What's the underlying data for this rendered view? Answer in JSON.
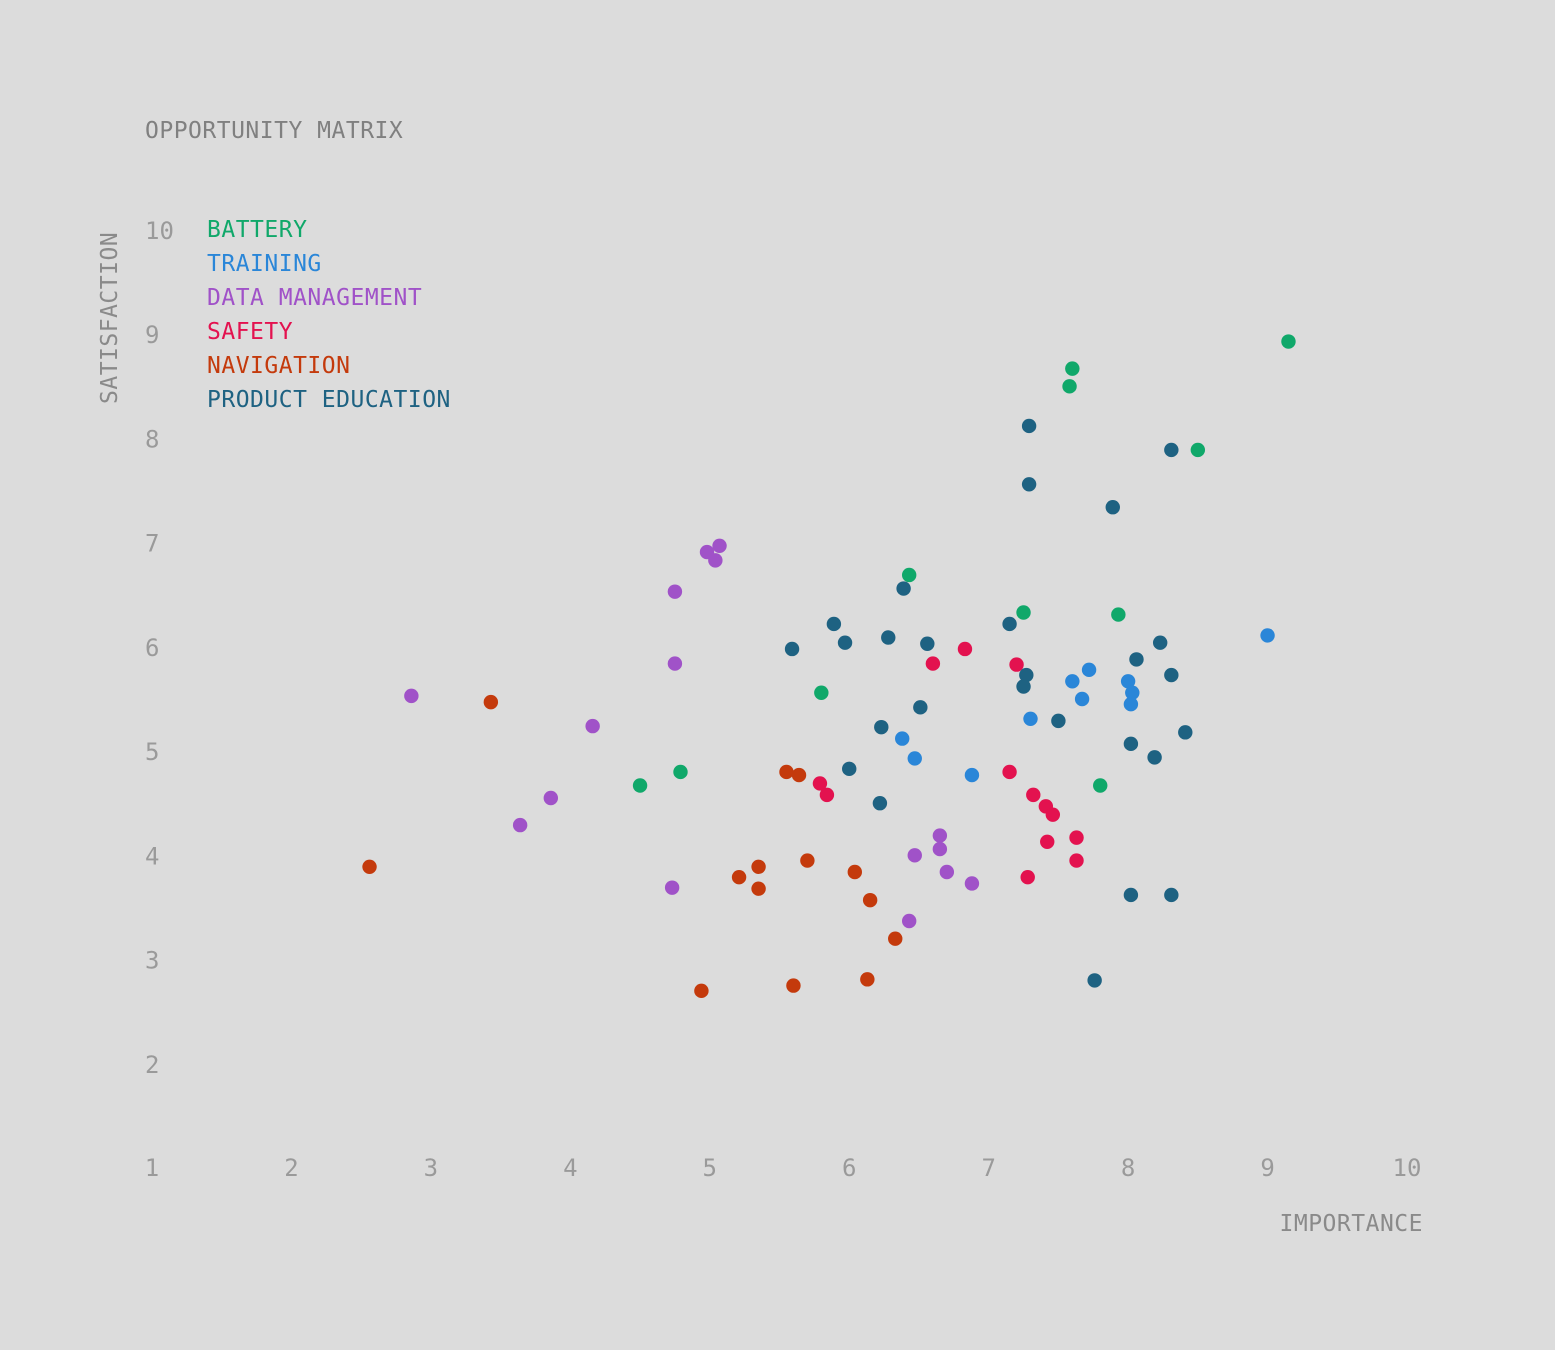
{
  "chart_data": {
    "type": "scatter",
    "title": "OPPORTUNITY MATRIX",
    "xlabel": "IMPORTANCE",
    "ylabel": "SATISFACTION",
    "xlim": [
      1,
      10
    ],
    "ylim": [
      1,
      10
    ],
    "xticks": [
      "1",
      "2",
      "3",
      "4",
      "5",
      "6",
      "7",
      "8",
      "9",
      "10"
    ],
    "yticks": [
      "2",
      "3",
      "4",
      "5",
      "6",
      "7",
      "8",
      "9",
      "10"
    ],
    "grid": false,
    "legend": "top-left",
    "series": [
      {
        "name": "BATTERY",
        "color": "#10a86a",
        "points": [
          [
            9.15,
            8.93
          ],
          [
            7.6,
            8.67
          ],
          [
            7.58,
            8.5
          ],
          [
            8.5,
            7.89
          ],
          [
            6.43,
            6.69
          ],
          [
            7.25,
            6.33
          ],
          [
            7.93,
            6.31
          ],
          [
            5.8,
            5.56
          ],
          [
            4.79,
            4.8
          ],
          [
            4.5,
            4.67
          ],
          [
            7.8,
            4.67
          ]
        ]
      },
      {
        "name": "TRAINING",
        "color": "#2a86d8",
        "points": [
          [
            9.0,
            6.11
          ],
          [
            7.72,
            5.78
          ],
          [
            7.6,
            5.67
          ],
          [
            8.0,
            5.67
          ],
          [
            8.03,
            5.56
          ],
          [
            7.67,
            5.5
          ],
          [
            8.02,
            5.45
          ],
          [
            7.3,
            5.31
          ],
          [
            6.38,
            5.12
          ],
          [
            6.47,
            4.93
          ],
          [
            6.88,
            4.77
          ]
        ]
      },
      {
        "name": "DATA MANAGEMENT",
        "color": "#a052c8",
        "points": [
          [
            5.07,
            6.97
          ],
          [
            4.98,
            6.91
          ],
          [
            5.04,
            6.83
          ],
          [
            4.75,
            6.53
          ],
          [
            4.75,
            5.84
          ],
          [
            2.86,
            5.53
          ],
          [
            4.16,
            5.24
          ],
          [
            3.86,
            4.55
          ],
          [
            3.64,
            4.29
          ],
          [
            6.65,
            4.19
          ],
          [
            6.65,
            4.06
          ],
          [
            6.47,
            4.0
          ],
          [
            6.7,
            3.84
          ],
          [
            6.88,
            3.73
          ],
          [
            4.73,
            3.69
          ],
          [
            6.43,
            3.37
          ]
        ]
      },
      {
        "name": "SAFETY",
        "color": "#e3124f",
        "points": [
          [
            6.83,
            5.98
          ],
          [
            6.6,
            5.84
          ],
          [
            7.2,
            5.83
          ],
          [
            7.15,
            4.8
          ],
          [
            5.79,
            4.69
          ],
          [
            5.84,
            4.58
          ],
          [
            7.32,
            4.58
          ],
          [
            7.41,
            4.47
          ],
          [
            7.46,
            4.39
          ],
          [
            7.63,
            4.17
          ],
          [
            7.42,
            4.13
          ],
          [
            7.63,
            3.95
          ],
          [
            7.28,
            3.79
          ]
        ]
      },
      {
        "name": "NAVIGATION",
        "color": "#c43a0c",
        "points": [
          [
            3.43,
            5.47
          ],
          [
            5.55,
            4.8
          ],
          [
            5.64,
            4.77
          ],
          [
            5.7,
            3.95
          ],
          [
            2.56,
            3.89
          ],
          [
            5.35,
            3.89
          ],
          [
            6.04,
            3.84
          ],
          [
            5.21,
            3.79
          ],
          [
            5.35,
            3.68
          ],
          [
            6.15,
            3.57
          ],
          [
            6.33,
            3.2
          ],
          [
            6.13,
            2.81
          ],
          [
            5.6,
            2.75
          ],
          [
            4.94,
            2.7
          ]
        ]
      },
      {
        "name": "PRODUCT EDUCATION",
        "color": "#1e6282",
        "points": [
          [
            7.29,
            8.12
          ],
          [
            8.31,
            7.89
          ],
          [
            7.29,
            7.56
          ],
          [
            7.89,
            7.34
          ],
          [
            6.39,
            6.56
          ],
          [
            5.89,
            6.22
          ],
          [
            7.15,
            6.22
          ],
          [
            6.28,
            6.09
          ],
          [
            5.97,
            6.04
          ],
          [
            6.56,
            6.03
          ],
          [
            8.23,
            6.04
          ],
          [
            5.59,
            5.98
          ],
          [
            8.06,
            5.88
          ],
          [
            7.27,
            5.73
          ],
          [
            8.31,
            5.73
          ],
          [
            7.25,
            5.62
          ],
          [
            6.51,
            5.42
          ],
          [
            7.5,
            5.29
          ],
          [
            6.23,
            5.23
          ],
          [
            8.41,
            5.18
          ],
          [
            8.02,
            5.07
          ],
          [
            8.19,
            4.94
          ],
          [
            6.0,
            4.83
          ],
          [
            6.22,
            4.5
          ],
          [
            8.02,
            3.62
          ],
          [
            8.31,
            3.62
          ],
          [
            7.76,
            2.8
          ]
        ]
      }
    ]
  }
}
